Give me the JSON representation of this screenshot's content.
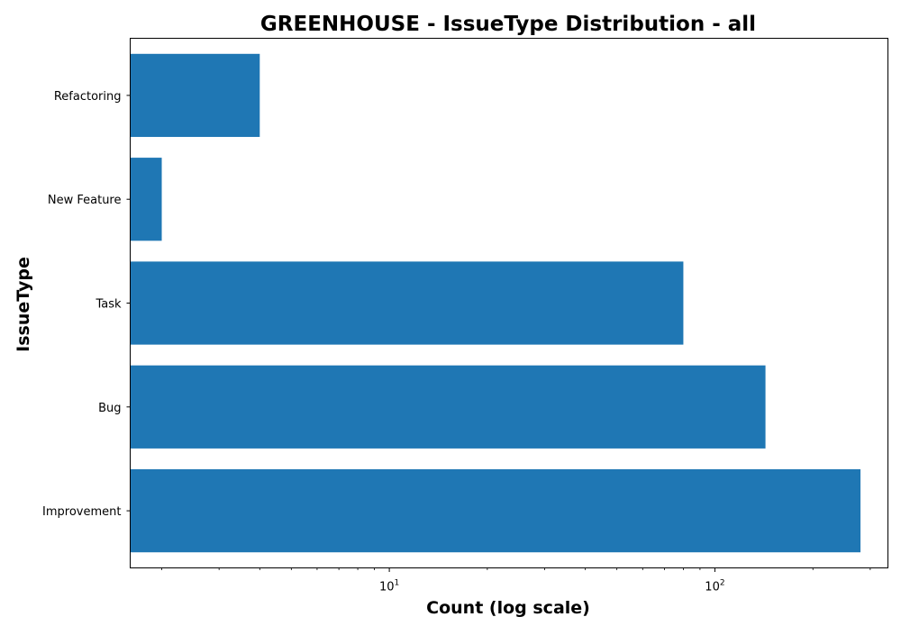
{
  "chart_data": {
    "type": "bar",
    "orientation": "horizontal",
    "title": "GREENHOUSE - IssueType Distribution - all",
    "xlabel": "Count (log scale)",
    "ylabel": "IssueType",
    "x_scale": "log",
    "xlim": [
      1.6,
      340
    ],
    "x_ticks": [
      {
        "value": 10,
        "base": "10",
        "exp": "1"
      },
      {
        "value": 100,
        "base": "10",
        "exp": "2"
      }
    ],
    "categories": [
      "Improvement",
      "Bug",
      "Task",
      "New Feature",
      "Refactoring"
    ],
    "values": [
      280,
      143,
      80,
      2,
      4
    ],
    "bar_color": "#1f77b4",
    "grid": false,
    "legend": "none"
  }
}
